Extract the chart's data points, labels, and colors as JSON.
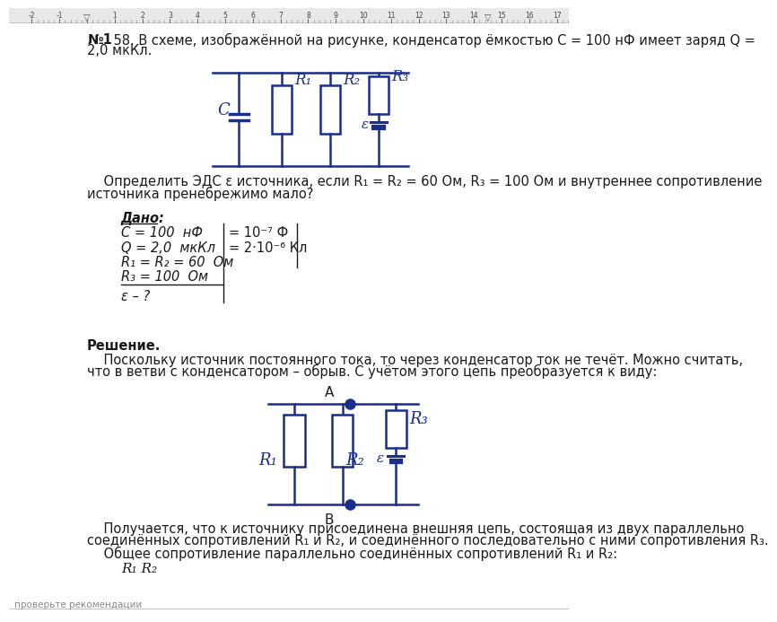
{
  "bg_color": "#ffffff",
  "text_color": "#1a1a1a",
  "blue_color": "#1a2e8c",
  "title_bold": "№1",
  "title_rest": "    58. В схеме, изображённой на рисунке, конденсатор ёмкостью С = 100 нФ имеет заряд Q =",
  "title_line2": "2,0 мкКл.",
  "question_line1": "    Определить ЭДС ε источника, если R₁ = R₂ = 60 Ом, R₃ = 100 Ом и внутреннее сопротивление",
  "question_line2": "источника пренебрежимо мало?",
  "given_title": "Дано:",
  "given_rows": [
    "C = 100  нФ",
    "Q = 2,0  мкКл",
    "R₁ = R₂ = 60  Ом",
    "R₃ = 100  Ом"
  ],
  "given_right": [
    "= 10⁻⁷ Ф",
    "= 2·10⁻⁶ Кл"
  ],
  "given_find": "ε – ?",
  "solution_title": "Решение.",
  "solution_text1": "    Поскольку источник постоянного тока, то через конденсатор ток не течёт. Можно считать,",
  "solution_text2": "что в ветви с конденсатором – обрыв. С учётом этого цепь преобразуется к виду:",
  "label_A": "А",
  "label_B": "В",
  "bottom_text1": "    Получается, что к источнику присоединена внешняя цепь, состоящая из двух параллельно",
  "bottom_text2": "соединённых сопротивлений R₁ и R₂, и соединённого последовательно с ними сопротивления R₃.",
  "bottom_text3": "    Общее сопротивление параллельно соединённых сопротивлений R₁ и R₂:",
  "bottom_formula": "R₁ R₂",
  "footer_text": "проверьте рекомендации"
}
